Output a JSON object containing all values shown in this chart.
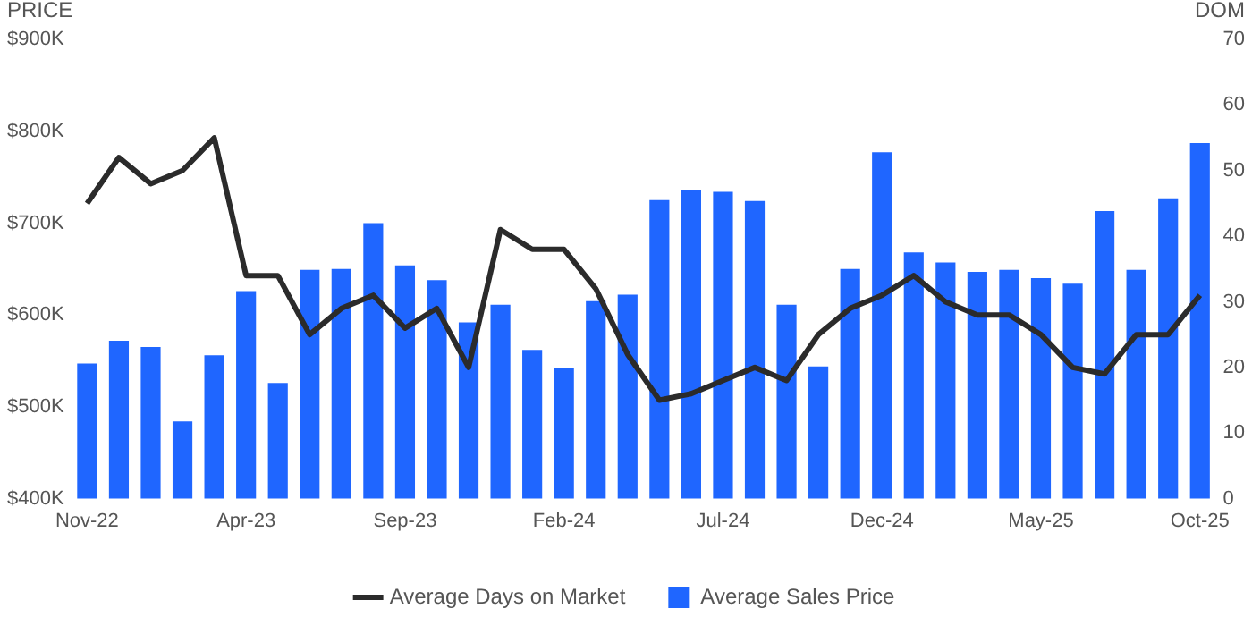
{
  "chart_data": {
    "type": "bar",
    "ylabel": "PRICE",
    "y2label": "DOM",
    "categories": [
      "Nov-22",
      null,
      null,
      null,
      null,
      "Apr-23",
      null,
      null,
      null,
      null,
      "Sep-23",
      null,
      null,
      null,
      null,
      "Feb-24",
      null,
      null,
      null,
      null,
      "Jul-24",
      null,
      null,
      null,
      null,
      "Dec-24",
      null,
      null,
      null,
      null,
      "May-25",
      null,
      null,
      null,
      null,
      "Oct-25"
    ],
    "series": [
      {
        "name": "Average Days on Market",
        "type": "line",
        "axis": "y2",
        "color": "#2b2b2b",
        "values": [
          45,
          52,
          48,
          50,
          55,
          34,
          34,
          25,
          29,
          31,
          26,
          29,
          20,
          41,
          38,
          38,
          32,
          22,
          15,
          16,
          18,
          20,
          18,
          25,
          29,
          31,
          34,
          30,
          28,
          28,
          25,
          20,
          19,
          25,
          25,
          31
        ]
      },
      {
        "name": "Average Sales Price",
        "color": "#1f66ff",
        "values": [
          547000,
          572000,
          565000,
          484000,
          556000,
          626000,
          526000,
          649000,
          650000,
          700000,
          654000,
          638000,
          592000,
          611000,
          562000,
          542000,
          615000,
          622000,
          725000,
          736000,
          734000,
          724000,
          611000,
          544000,
          650000,
          777000,
          668000,
          657000,
          647000,
          649000,
          640000,
          634000,
          713000,
          649000,
          727000,
          787000
        ]
      }
    ],
    "ylim": [
      400000,
      900000
    ],
    "yticks": [
      {
        "value": 400000,
        "label": "$400K"
      },
      {
        "value": 500000,
        "label": "$500K"
      },
      {
        "value": 600000,
        "label": "$600K"
      },
      {
        "value": 700000,
        "label": "$700K"
      },
      {
        "value": 800000,
        "label": "$800K"
      },
      {
        "value": 900000,
        "label": "$900K"
      }
    ],
    "y2lim": [
      0,
      70
    ],
    "y2ticks": [
      0,
      10,
      20,
      30,
      40,
      50,
      60,
      70
    ],
    "grid": false,
    "legend": "bottom",
    "marker": "none",
    "line_style": "solid"
  }
}
